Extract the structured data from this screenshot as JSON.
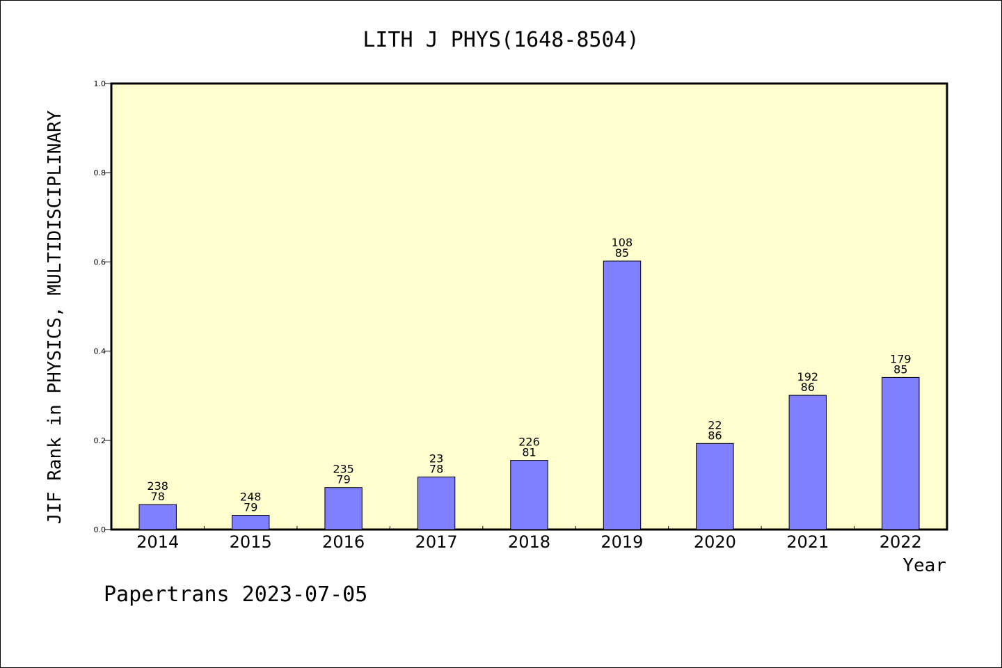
{
  "chart_data": {
    "type": "bar",
    "title": "LITH J PHYS(1648-8504)",
    "xlabel": "Year",
    "ylabel": "JIF Rank in PHYSICS, MULTIDISCIPLINARY",
    "categories": [
      "2014",
      "2015",
      "2016",
      "2017",
      "2018",
      "2019",
      "2020",
      "2021",
      "2022"
    ],
    "values": [
      0.056,
      0.032,
      0.094,
      0.118,
      0.155,
      0.602,
      0.193,
      0.301,
      0.341
    ],
    "bar_labels": [
      [
        "238",
        "78"
      ],
      [
        "248",
        "79"
      ],
      [
        "235",
        "79"
      ],
      [
        "23",
        "78"
      ],
      [
        "226",
        "81"
      ],
      [
        "108",
        "85"
      ],
      [
        "22",
        "86"
      ],
      [
        "192",
        "86"
      ],
      [
        "179",
        "85"
      ]
    ],
    "ylim": [
      0,
      1.0
    ],
    "yticks": [
      "0.0",
      "0.2",
      "0.4",
      "0.6",
      "0.8",
      "1.0"
    ],
    "grid": false,
    "colors": {
      "bar": "#8080ff",
      "plot_background": "#ffffd0",
      "axis": "#000000"
    }
  },
  "footer": {
    "text": "Papertrans 2023-07-05"
  }
}
